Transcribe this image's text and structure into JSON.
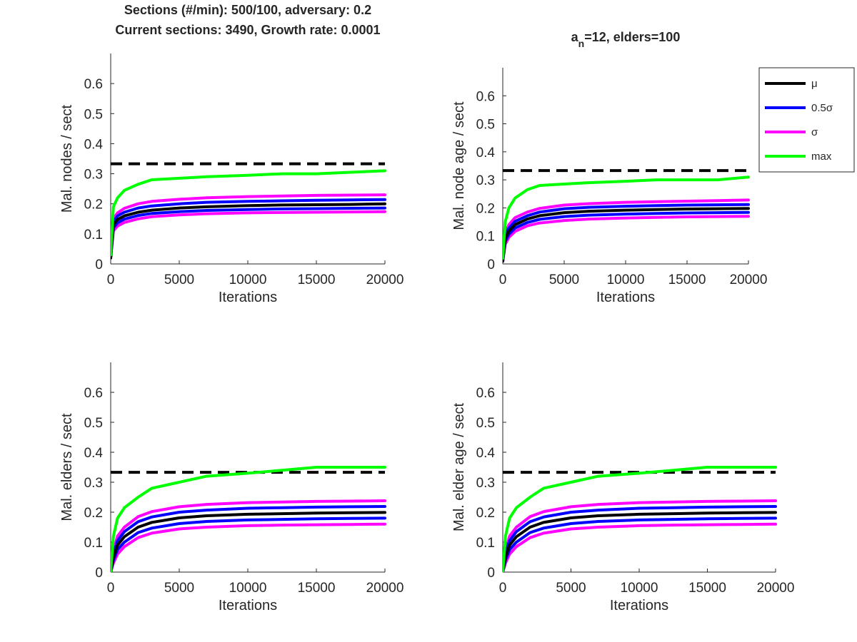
{
  "figure": {
    "title_line1": "Sections (#/min): 500/100, adversary: 0.2",
    "title_line2": "Current sections: 3490, Growth rate: 0.0001",
    "title_right_pre": "a",
    "title_right_sub": "n",
    "title_right_post": "=12, elders=100"
  },
  "colors": {
    "mean": "#000000",
    "half_sigma": "#0000ff",
    "sigma": "#ff00ff",
    "max": "#00ff00",
    "threshold": "#000000"
  },
  "legend": {
    "placement": "top-right",
    "entries": [
      {
        "label": "μ",
        "color": "#000000"
      },
      {
        "label": "0.5σ",
        "color": "#0000ff"
      },
      {
        "label": "σ",
        "color": "#ff00ff"
      },
      {
        "label": "max",
        "color": "#00ff00"
      }
    ]
  },
  "chart_data": [
    {
      "type": "line",
      "xlabel": "Iterations",
      "ylabel": "Mal. nodes / sect",
      "xlim": [
        0,
        20000
      ],
      "ylim": [
        0,
        0.7
      ],
      "xticks": [
        "0",
        "5000",
        "10000",
        "15000",
        "20000"
      ],
      "yticks": [
        "0",
        "0.1",
        "0.2",
        "0.3",
        "0.4",
        "0.5",
        "0.6"
      ],
      "threshold": 0.333,
      "x": [
        0,
        200,
        500,
        1000,
        2000,
        3000,
        5000,
        7000,
        10000,
        12500,
        15000,
        17500,
        20000
      ],
      "series": [
        {
          "role": "sigma_upper",
          "values": [
            0.02,
            0.15,
            0.17,
            0.185,
            0.2,
            0.208,
            0.215,
            0.22,
            0.224,
            0.226,
            0.228,
            0.229,
            0.23
          ]
        },
        {
          "role": "half_sigma_upper",
          "values": [
            0.02,
            0.14,
            0.16,
            0.172,
            0.186,
            0.193,
            0.2,
            0.205,
            0.208,
            0.21,
            0.212,
            0.213,
            0.214
          ]
        },
        {
          "role": "mean",
          "values": [
            0.02,
            0.13,
            0.148,
            0.16,
            0.172,
            0.179,
            0.186,
            0.19,
            0.194,
            0.196,
            0.197,
            0.198,
            0.2
          ]
        },
        {
          "role": "half_sigma_lower",
          "values": [
            0.02,
            0.12,
            0.137,
            0.149,
            0.161,
            0.168,
            0.174,
            0.178,
            0.181,
            0.183,
            0.184,
            0.185,
            0.186
          ]
        },
        {
          "role": "sigma_lower",
          "values": [
            0.02,
            0.11,
            0.126,
            0.138,
            0.15,
            0.157,
            0.163,
            0.167,
            0.17,
            0.171,
            0.172,
            0.173,
            0.174
          ]
        },
        {
          "role": "max",
          "values": [
            0.03,
            0.19,
            0.22,
            0.245,
            0.265,
            0.28,
            0.285,
            0.29,
            0.295,
            0.3,
            0.3,
            0.305,
            0.31
          ]
        }
      ]
    },
    {
      "type": "line",
      "xlabel": "Iterations",
      "ylabel": "Mal. node age / sect",
      "xlim": [
        0,
        20000
      ],
      "ylim": [
        0,
        0.7
      ],
      "xticks": [
        "0",
        "5000",
        "10000",
        "15000",
        "20000"
      ],
      "yticks": [
        "0",
        "0.1",
        "0.2",
        "0.3",
        "0.4",
        "0.5",
        "0.6"
      ],
      "threshold": 0.333,
      "x": [
        0,
        200,
        500,
        1000,
        2000,
        3000,
        5000,
        7000,
        10000,
        12500,
        15000,
        17500,
        20000
      ],
      "series": [
        {
          "role": "sigma_upper",
          "values": [
            0.01,
            0.11,
            0.14,
            0.165,
            0.185,
            0.198,
            0.21,
            0.215,
            0.22,
            0.222,
            0.224,
            0.226,
            0.228
          ]
        },
        {
          "role": "half_sigma_upper",
          "values": [
            0.01,
            0.1,
            0.128,
            0.152,
            0.172,
            0.185,
            0.197,
            0.202,
            0.206,
            0.208,
            0.21,
            0.211,
            0.212
          ]
        },
        {
          "role": "mean",
          "values": [
            0.01,
            0.09,
            0.117,
            0.14,
            0.16,
            0.172,
            0.183,
            0.188,
            0.192,
            0.194,
            0.196,
            0.197,
            0.198
          ]
        },
        {
          "role": "half_sigma_lower",
          "values": [
            0.01,
            0.08,
            0.106,
            0.128,
            0.148,
            0.159,
            0.169,
            0.174,
            0.178,
            0.18,
            0.182,
            0.183,
            0.184
          ]
        },
        {
          "role": "sigma_lower",
          "values": [
            0.01,
            0.07,
            0.095,
            0.116,
            0.136,
            0.146,
            0.155,
            0.16,
            0.164,
            0.166,
            0.168,
            0.169,
            0.17
          ]
        },
        {
          "role": "max",
          "values": [
            0.02,
            0.15,
            0.2,
            0.235,
            0.265,
            0.28,
            0.285,
            0.29,
            0.295,
            0.3,
            0.3,
            0.3,
            0.31
          ]
        }
      ]
    },
    {
      "type": "line",
      "xlabel": "Iterations",
      "ylabel": "Mal. elders / sect",
      "xlim": [
        0,
        20000
      ],
      "ylim": [
        0,
        0.7
      ],
      "xticks": [
        "0",
        "5000",
        "10000",
        "15000",
        "20000"
      ],
      "yticks": [
        "0",
        "0.1",
        "0.2",
        "0.3",
        "0.4",
        "0.5",
        "0.6"
      ],
      "threshold": 0.333,
      "x": [
        0,
        200,
        500,
        1000,
        2000,
        3000,
        5000,
        7000,
        10000,
        12500,
        15000,
        17500,
        20000
      ],
      "series": [
        {
          "role": "sigma_upper",
          "values": [
            0.0,
            0.07,
            0.12,
            0.15,
            0.185,
            0.202,
            0.218,
            0.226,
            0.232,
            0.234,
            0.236,
            0.237,
            0.238
          ]
        },
        {
          "role": "half_sigma_upper",
          "values": [
            0.0,
            0.06,
            0.105,
            0.135,
            0.168,
            0.184,
            0.2,
            0.207,
            0.213,
            0.215,
            0.217,
            0.218,
            0.219
          ]
        },
        {
          "role": "mean",
          "values": [
            0.0,
            0.05,
            0.09,
            0.118,
            0.15,
            0.166,
            0.181,
            0.188,
            0.193,
            0.195,
            0.197,
            0.198,
            0.199
          ]
        },
        {
          "role": "half_sigma_lower",
          "values": [
            0.0,
            0.04,
            0.075,
            0.1,
            0.132,
            0.147,
            0.162,
            0.169,
            0.174,
            0.176,
            0.178,
            0.179,
            0.18
          ]
        },
        {
          "role": "sigma_lower",
          "values": [
            0.0,
            0.03,
            0.06,
            0.085,
            0.115,
            0.13,
            0.144,
            0.15,
            0.155,
            0.157,
            0.158,
            0.159,
            0.16
          ]
        },
        {
          "role": "max",
          "values": [
            0.0,
            0.12,
            0.18,
            0.215,
            0.25,
            0.28,
            0.3,
            0.32,
            0.33,
            0.34,
            0.35,
            0.35,
            0.35
          ]
        }
      ]
    },
    {
      "type": "line",
      "xlabel": "Iterations",
      "ylabel": "Mal. elder age / sect",
      "xlim": [
        0,
        20000
      ],
      "ylim": [
        0,
        0.7
      ],
      "xticks": [
        "0",
        "5000",
        "10000",
        "15000",
        "20000"
      ],
      "yticks": [
        "0",
        "0.1",
        "0.2",
        "0.3",
        "0.4",
        "0.5",
        "0.6"
      ],
      "threshold": 0.333,
      "x": [
        0,
        200,
        500,
        1000,
        2000,
        3000,
        5000,
        7000,
        10000,
        12500,
        15000,
        17500,
        20000
      ],
      "series": [
        {
          "role": "sigma_upper",
          "values": [
            0.0,
            0.07,
            0.12,
            0.15,
            0.185,
            0.202,
            0.218,
            0.226,
            0.232,
            0.234,
            0.236,
            0.237,
            0.238
          ]
        },
        {
          "role": "half_sigma_upper",
          "values": [
            0.0,
            0.06,
            0.105,
            0.135,
            0.168,
            0.184,
            0.2,
            0.207,
            0.213,
            0.215,
            0.217,
            0.218,
            0.219
          ]
        },
        {
          "role": "mean",
          "values": [
            0.0,
            0.05,
            0.09,
            0.118,
            0.15,
            0.166,
            0.181,
            0.188,
            0.193,
            0.195,
            0.197,
            0.198,
            0.199
          ]
        },
        {
          "role": "half_sigma_lower",
          "values": [
            0.0,
            0.04,
            0.075,
            0.1,
            0.132,
            0.147,
            0.162,
            0.169,
            0.174,
            0.176,
            0.178,
            0.179,
            0.18
          ]
        },
        {
          "role": "sigma_lower",
          "values": [
            0.0,
            0.03,
            0.06,
            0.085,
            0.115,
            0.13,
            0.144,
            0.15,
            0.155,
            0.157,
            0.158,
            0.159,
            0.16
          ]
        },
        {
          "role": "max",
          "values": [
            0.0,
            0.12,
            0.18,
            0.215,
            0.25,
            0.28,
            0.3,
            0.32,
            0.33,
            0.34,
            0.35,
            0.35,
            0.35
          ]
        }
      ]
    }
  ]
}
